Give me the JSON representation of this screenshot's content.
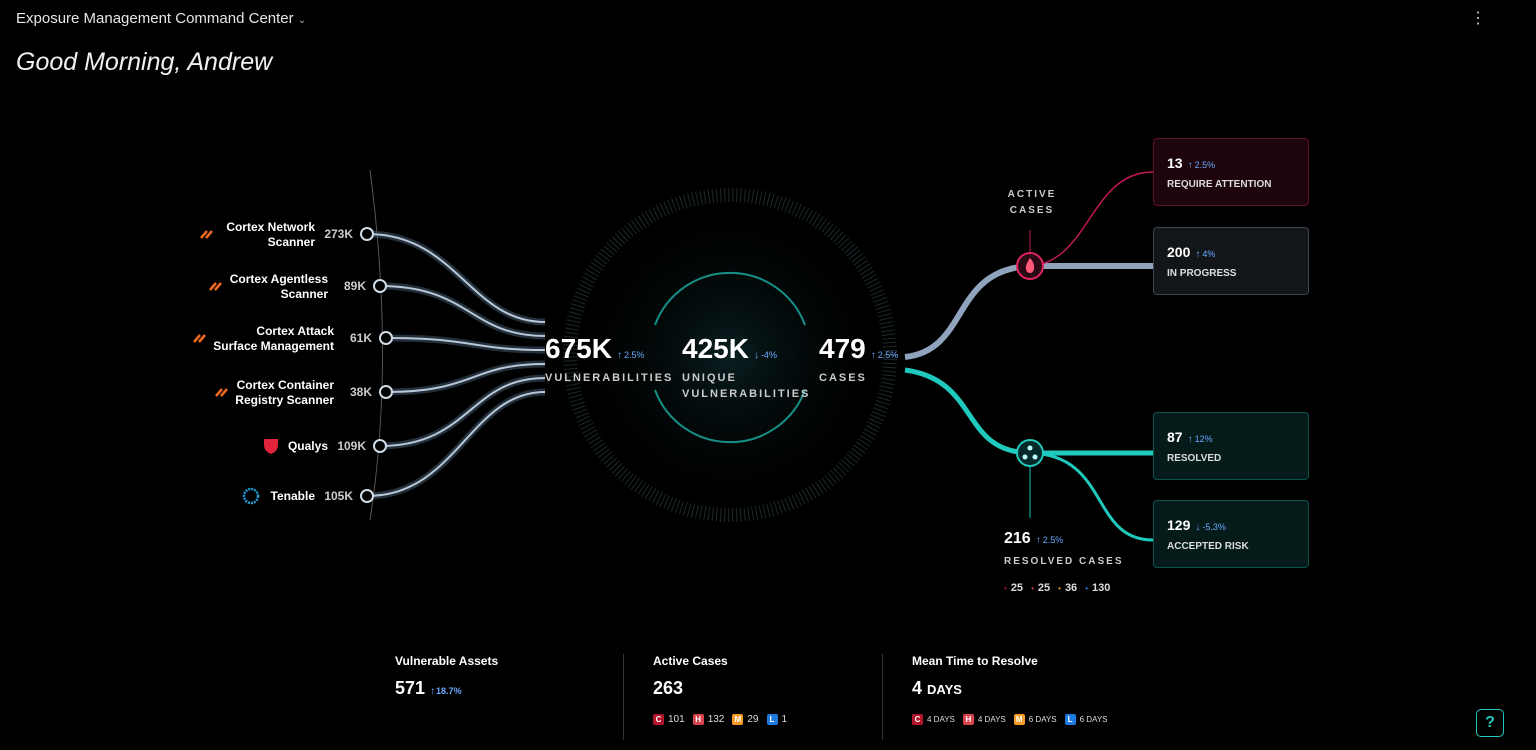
{
  "header": {
    "title": "Exposure Management Command Center",
    "greeting": "Good Morning, Andrew"
  },
  "sources": [
    {
      "name": "Cortex Network Scanner",
      "value": "273K",
      "icon": "cortex"
    },
    {
      "name": "Cortex Agentless Scanner",
      "value": "89K",
      "icon": "cortex"
    },
    {
      "name": "Cortex Attack Surface Management",
      "value": "61K",
      "icon": "cortex"
    },
    {
      "name": "Cortex Container Registry Scanner",
      "value": "38K",
      "icon": "cortex"
    },
    {
      "name": "Qualys",
      "value": "109K",
      "icon": "qualys"
    },
    {
      "name": "Tenable",
      "value": "105K",
      "icon": "tenable"
    }
  ],
  "metrics": [
    {
      "value": "675K",
      "change": "2.5%",
      "trend": "up",
      "label": "VULNERABILITIES"
    },
    {
      "value": "425K",
      "change": "-4%",
      "trend": "down",
      "label": "UNIQUE VULNERABILITIES"
    },
    {
      "value": "479",
      "change": "2.5%",
      "trend": "up",
      "label": "CASES"
    }
  ],
  "active_label": "ACTIVE CASES",
  "outcomes": [
    {
      "value": "13",
      "change": "2.5%",
      "trend": "up",
      "label": "REQUIRE ATTENTION",
      "color": "#e0245e"
    },
    {
      "value": "200",
      "change": "4%",
      "trend": "up",
      "label": "IN PROGRESS",
      "color": "#8fa3bd"
    },
    {
      "value": "87",
      "change": "12%",
      "trend": "up",
      "label": "RESOLVED",
      "color": "#1fc9bd"
    },
    {
      "value": "129",
      "change": "-5.3%",
      "trend": "down",
      "label": "ACCEPTED RISK",
      "color": "#1fc9bd"
    }
  ],
  "resolved": {
    "value": "216",
    "change": "2.5%",
    "trend": "up",
    "label": "RESOLVED CASES",
    "breakdown": [
      {
        "value": "25",
        "color": "#b3142b"
      },
      {
        "value": "25",
        "color": "#d9434b"
      },
      {
        "value": "36",
        "color": "#f59a23"
      },
      {
        "value": "130",
        "color": "#1f7ae0"
      }
    ]
  },
  "summary": [
    {
      "title": "Vulnerable Assets",
      "value": "571",
      "change": "18.7%",
      "trend": "up",
      "breakdown": []
    },
    {
      "title": "Active Cases",
      "value": "263",
      "breakdown": [
        {
          "level": "C",
          "value": "101",
          "color": "#b3142b"
        },
        {
          "level": "H",
          "value": "132",
          "color": "#d9434b"
        },
        {
          "level": "M",
          "value": "29",
          "color": "#f59a23"
        },
        {
          "level": "L",
          "value": "1",
          "color": "#1f7ae0"
        }
      ]
    },
    {
      "title": "Mean Time to Resolve",
      "value": "4",
      "unit": "DAYS",
      "breakdown": [
        {
          "level": "C",
          "value": "4 DAYS",
          "color": "#b3142b"
        },
        {
          "level": "H",
          "value": "4 DAYS",
          "color": "#d9434b"
        },
        {
          "level": "M",
          "value": "6 DAYS",
          "color": "#f59a23"
        },
        {
          "level": "L",
          "value": "6 DAYS",
          "color": "#1f7ae0"
        }
      ]
    }
  ],
  "help": "?"
}
